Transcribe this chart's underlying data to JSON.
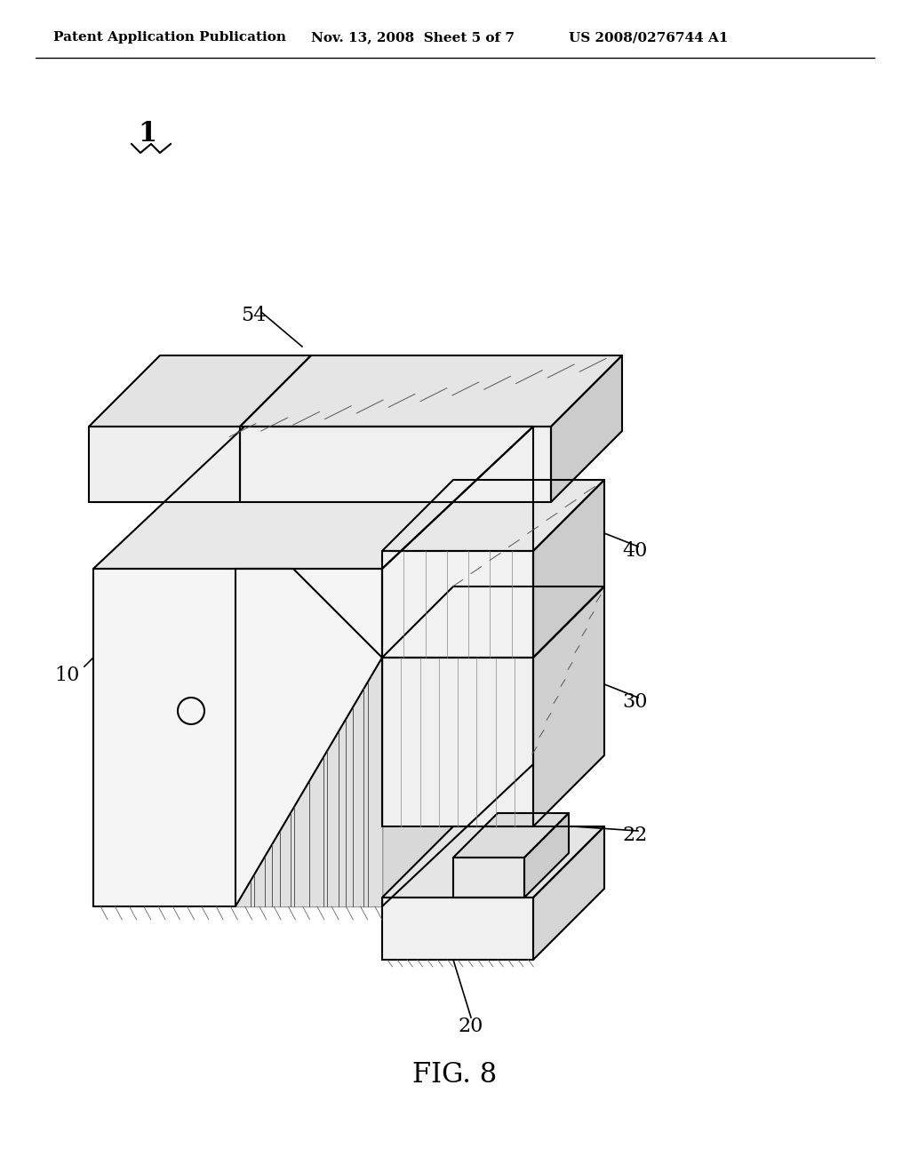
{
  "background_color": "#ffffff",
  "line_color": "#000000",
  "header_left": "Patent Application Publication",
  "header_mid": "Nov. 13, 2008  Sheet 5 of 7",
  "header_right": "US 2008/0276744 A1",
  "fig_label": "FIG. 8",
  "ref_number": "1"
}
